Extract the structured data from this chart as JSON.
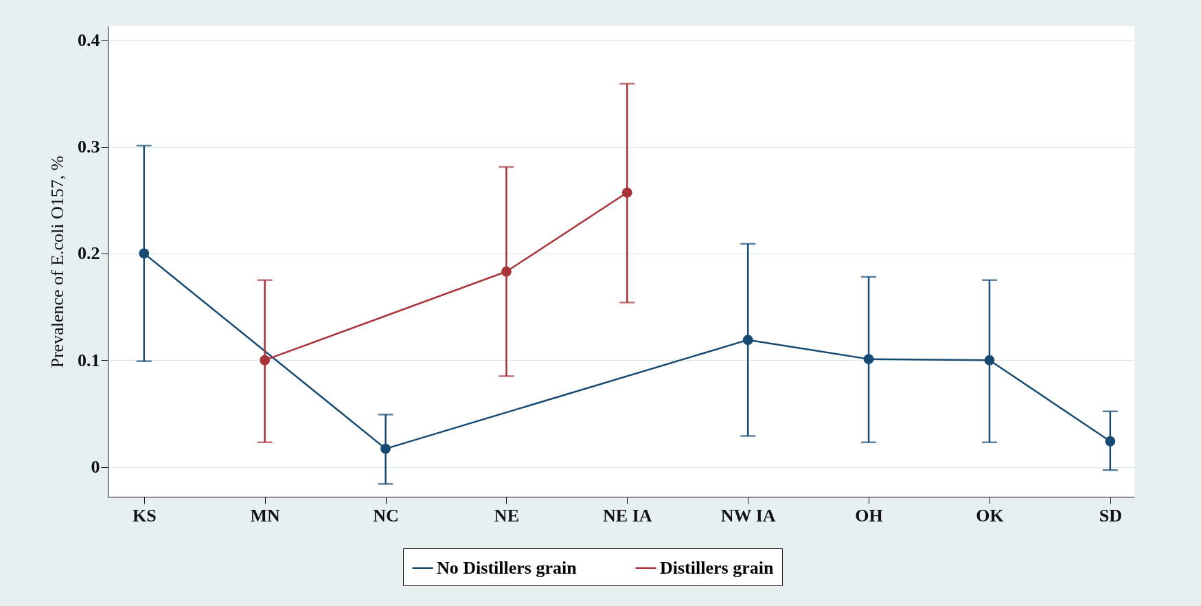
{
  "chart_data": {
    "type": "line",
    "ylabel": "Prevalence of E.coli O157, %",
    "categories": [
      "KS",
      "MN",
      "NC",
      "NE",
      "NE IA",
      "NW IA",
      "OH",
      "OK",
      "SD"
    ],
    "ylim": [
      -0.028,
      0.413
    ],
    "yticks": [
      0,
      0.1,
      0.2,
      0.3,
      0.4
    ],
    "grid": "y",
    "legend": "bottom",
    "marker": "circle",
    "line_style": "solid",
    "series": [
      {
        "name": "No Distillers grain",
        "color": "#174a73",
        "values": [
          0.2,
          null,
          0.017,
          null,
          null,
          0.119,
          0.101,
          0.1,
          0.024
        ],
        "errors": [
          [
            0.099,
            0.301
          ],
          null,
          [
            -0.016,
            0.049
          ],
          null,
          null,
          [
            0.029,
            0.209
          ],
          [
            0.023,
            0.178
          ],
          [
            0.023,
            0.175
          ],
          [
            -0.003,
            0.052
          ]
        ]
      },
      {
        "name": "Distillers grain",
        "color": "#a8343a",
        "values": [
          null,
          0.1,
          null,
          0.183,
          0.257,
          null,
          null,
          null,
          null
        ],
        "errors": [
          null,
          [
            0.023,
            0.175
          ],
          null,
          [
            0.085,
            0.281
          ],
          [
            0.154,
            0.359
          ],
          null,
          null,
          null,
          null
        ]
      }
    ]
  }
}
